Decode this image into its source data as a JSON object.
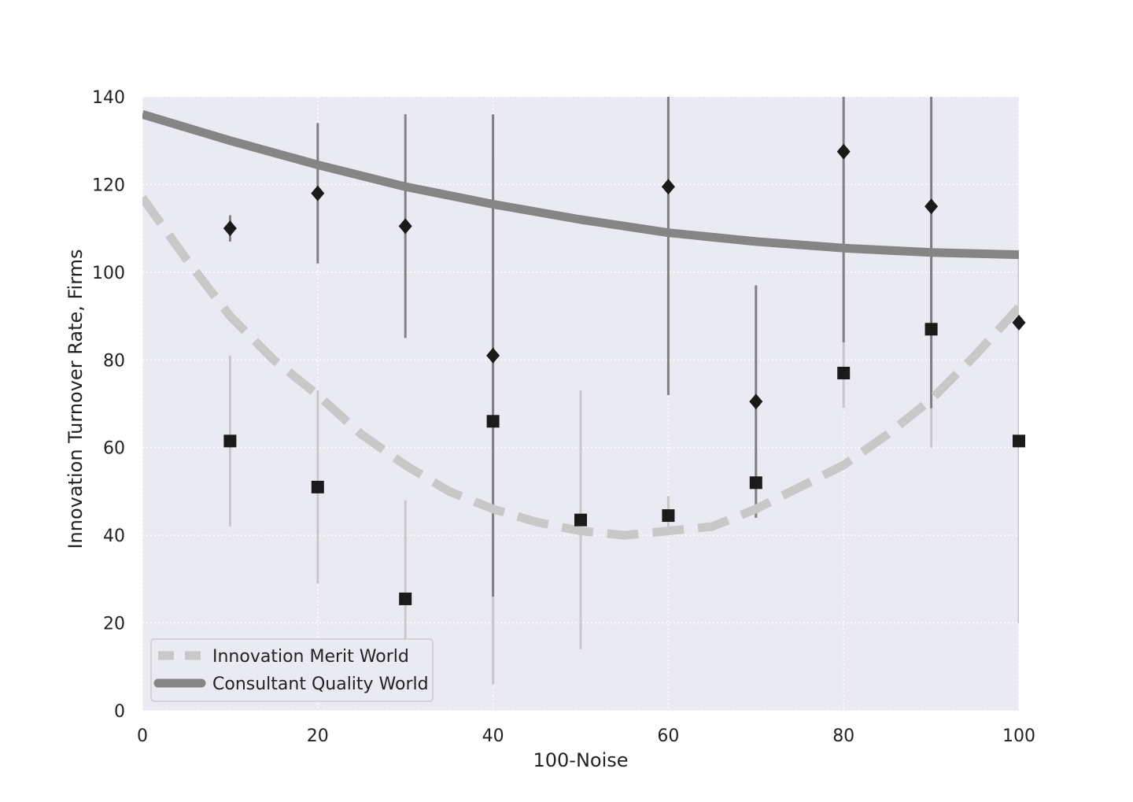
{
  "chart_data": {
    "type": "scatter",
    "title": "",
    "xlabel": "100-Noise",
    "ylabel": "Innovation Turnover Rate, Firms",
    "xlim": [
      0,
      100
    ],
    "ylim": [
      0,
      140
    ],
    "xticks": [
      0,
      20,
      40,
      60,
      80,
      100
    ],
    "yticks": [
      0,
      20,
      40,
      60,
      80,
      100,
      120,
      140
    ],
    "xtick_labels": [
      "0",
      "20",
      "40",
      "60",
      "80",
      "100"
    ],
    "ytick_labels": [
      "0",
      "20",
      "40",
      "60",
      "80",
      "100",
      "120",
      "140"
    ],
    "grid": true,
    "grid_style": "dotted",
    "legend_position": "lower-left",
    "colors": {
      "plot_background": "#eaeaf2",
      "grid": "#ffffff",
      "merit_line": "#c8c8c8",
      "consultant_line": "#858585",
      "merit_errorbar": "#c8c8c8",
      "consultant_errorbar": "#808080",
      "marker": "#1a1a1a"
    },
    "series": [
      {
        "name": "Innovation Merit World",
        "kind": "fit-line",
        "style": "dashed",
        "x": [
          0,
          5,
          10,
          15,
          20,
          25,
          30,
          35,
          40,
          45,
          50,
          55,
          60,
          65,
          70,
          75,
          80,
          85,
          90,
          95,
          100
        ],
        "y": [
          117,
          103,
          90,
          80,
          72,
          63,
          56,
          50,
          46,
          43,
          41,
          40,
          41,
          42,
          46,
          51,
          56,
          63,
          71,
          81,
          92
        ]
      },
      {
        "name": "Consultant Quality World",
        "kind": "fit-line",
        "style": "solid",
        "x": [
          0,
          10,
          20,
          30,
          40,
          50,
          60,
          70,
          80,
          90,
          100
        ],
        "y": [
          136,
          130,
          124.5,
          119.5,
          115.5,
          112,
          109,
          107,
          105.5,
          104.5,
          104
        ]
      },
      {
        "kind": "points",
        "marker": "square",
        "errorbar_color": "merit",
        "x": [
          10,
          20,
          30,
          40,
          50,
          60,
          70,
          80,
          90,
          100
        ],
        "y": [
          61.5,
          51,
          25.5,
          66,
          43.5,
          44.5,
          52,
          77,
          87,
          61.5
        ],
        "err_low": [
          42,
          29,
          3,
          6,
          14,
          40,
          44,
          69,
          60,
          20
        ],
        "err_high": [
          81,
          73,
          48,
          126,
          73,
          49,
          60,
          84,
          114,
          103
        ]
      },
      {
        "kind": "points",
        "marker": "diamond",
        "errorbar_color": "consultant",
        "x": [
          10,
          20,
          30,
          40,
          60,
          70,
          80,
          90,
          100
        ],
        "y": [
          110,
          118,
          110.5,
          81,
          119.5,
          70.5,
          127.5,
          115,
          88.5
        ],
        "err_low": [
          107,
          102,
          85,
          26,
          72,
          44,
          84,
          69,
          88
        ],
        "err_high": [
          113,
          134,
          136,
          136,
          140,
          97,
          140,
          140,
          89
        ]
      }
    ]
  }
}
